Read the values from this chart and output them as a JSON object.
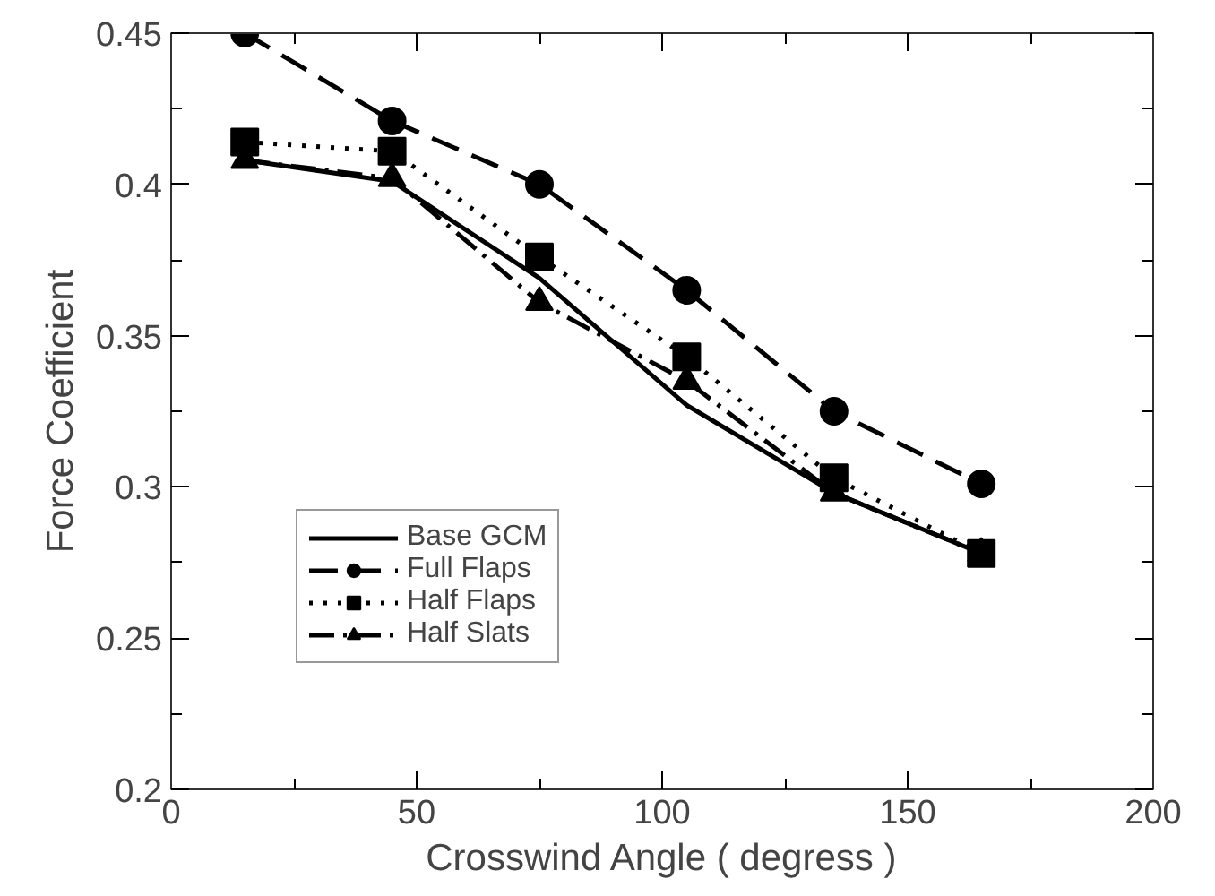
{
  "chart_data": {
    "type": "line",
    "xlabel": "Crosswind Angle ( degress )",
    "ylabel": "Force Coefficient",
    "x": [
      15,
      45,
      75,
      105,
      135,
      165
    ],
    "xlim": [
      0,
      200
    ],
    "xticks": [
      0,
      50,
      100,
      150,
      200
    ],
    "ylim": [
      0.2,
      0.45
    ],
    "yticks": [
      0.2,
      0.25,
      0.3,
      0.35,
      0.4,
      0.45
    ],
    "grid": false,
    "legend": "bottom left",
    "series": [
      {
        "name": "Base GCM",
        "color": "#000000",
        "line_style": "solid",
        "values": [
          0.408,
          0.401,
          0.369,
          0.327,
          0.298,
          0.278
        ]
      },
      {
        "name": "Full Flaps",
        "color": "#000000",
        "marker": "circle",
        "line_style": "dashed",
        "values": [
          0.45,
          0.421,
          0.4,
          0.365,
          0.325,
          0.301
        ]
      },
      {
        "name": "Half Flaps",
        "color": "#000000",
        "marker": "square",
        "line_style": "dotted",
        "values": [
          0.414,
          0.411,
          0.376,
          0.343,
          0.303,
          0.278
        ]
      },
      {
        "name": "Half Slats",
        "color": "#000000",
        "marker": "triangle",
        "line_style": "dashdot",
        "values": [
          0.408,
          0.402,
          0.361,
          0.335,
          0.298,
          0.278
        ]
      }
    ]
  }
}
